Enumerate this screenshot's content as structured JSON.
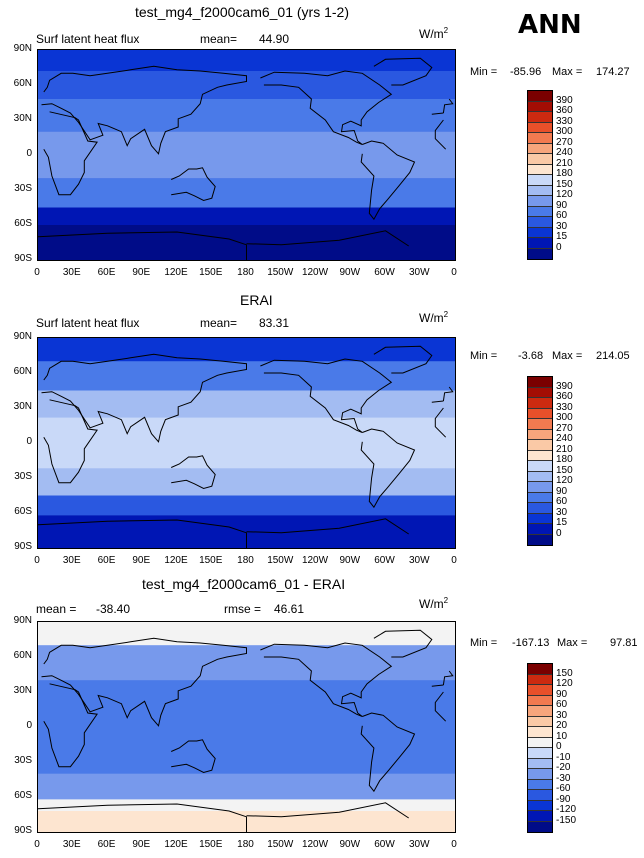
{
  "season": "ANN",
  "lat_labels": [
    "90N",
    "60N",
    "30N",
    "0",
    "30S",
    "60S",
    "90S"
  ],
  "lon_labels": [
    "0",
    "30E",
    "60E",
    "90E",
    "120E",
    "150E",
    "180",
    "150W",
    "120W",
    "90W",
    "60W",
    "30W",
    "0"
  ],
  "colors": {
    "level_fill": [
      "#000c88",
      "#0016b4",
      "#0a35d4",
      "#2a58e0",
      "#4a7ae8",
      "#7799ec",
      "#a3bcf2",
      "#c9d9f8",
      "#f3f3f3",
      "#fde5d0",
      "#fac9a6",
      "#f7a57c",
      "#f27a50",
      "#e8502a",
      "#cc2a10",
      "#a30d04",
      "#7a0000"
    ],
    "diff_fill": [
      "#000c88",
      "#0016b4",
      "#0a35d4",
      "#2a58e0",
      "#4a7ae8",
      "#7799ec",
      "#a3bcf2",
      "#c9d9f8",
      "#f3f3f3",
      "#fde5d0",
      "#fac9a6",
      "#f7a57c",
      "#f27a50",
      "#e8502a",
      "#cc2a10",
      "#7a0000"
    ]
  },
  "panels": [
    {
      "title": "test_mg4_f2000cam6_01 (yrs 1-2)",
      "left_label": "Surf latent heat flux",
      "stat_label": "mean=",
      "stat_value": "44.90",
      "rmse_label": "",
      "rmse_value": "",
      "unit_base": "W/m",
      "unit_exp": "2",
      "min_label": "Min =",
      "min_value": "-85.96",
      "max_label": "Max =",
      "max_value": "174.27",
      "levels": [
        "390",
        "360",
        "330",
        "300",
        "270",
        "240",
        "210",
        "180",
        "150",
        "120",
        "90",
        "60",
        "30",
        "15",
        "0"
      ],
      "mean_value": 44.9
    },
    {
      "title": "ERAI",
      "left_label": "Surf latent heat flux",
      "stat_label": "mean=",
      "stat_value": "83.31",
      "rmse_label": "",
      "rmse_value": "",
      "unit_base": "W/m",
      "unit_exp": "2",
      "min_label": "Min =",
      "min_value": "-3.68",
      "max_label": "Max =",
      "max_value": "214.05",
      "levels": [
        "390",
        "360",
        "330",
        "300",
        "270",
        "240",
        "210",
        "180",
        "150",
        "120",
        "90",
        "60",
        "30",
        "15",
        "0"
      ],
      "mean_value": 83.31
    },
    {
      "title": "test_mg4_f2000cam6_01 - ERAI",
      "left_label": "mean =",
      "stat_label": "",
      "stat_value": "-38.40",
      "rmse_label": "rmse =",
      "rmse_value": "46.61",
      "unit_base": "W/m",
      "unit_exp": "2",
      "min_label": "Min =",
      "min_value": "-167.13",
      "max_label": "Max =",
      "max_value": "97.81",
      "levels": [
        "150",
        "120",
        "90",
        "60",
        "30",
        "20",
        "10",
        "0",
        "-10",
        "-20",
        "-30",
        "-60",
        "-90",
        "-120",
        "-150"
      ],
      "mean_value": -38.4
    }
  ]
}
